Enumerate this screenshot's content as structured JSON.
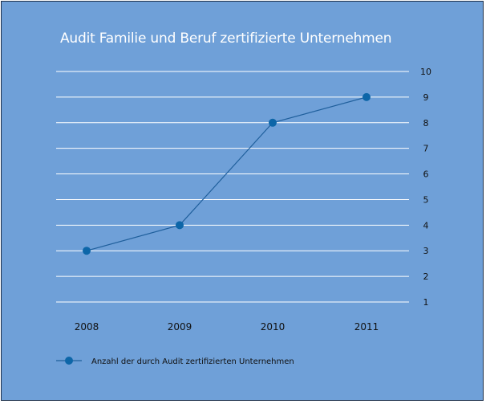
{
  "chart_data": {
    "type": "line",
    "title": "Audit Familie und Beruf zertifizierte Unternehmen",
    "xlabel": "",
    "ylabel": "",
    "categories": [
      "2008",
      "2009",
      "2010",
      "2011"
    ],
    "series": [
      {
        "name": "Anzahl der durch Audit zertifizierten Unternehmen",
        "values": [
          3,
          4,
          8,
          9
        ]
      }
    ],
    "ylim": [
      1,
      10
    ],
    "yticks": [
      1,
      2,
      3,
      4,
      5,
      6,
      7,
      8,
      9,
      10
    ],
    "y_axis_side": "right",
    "grid": true,
    "legend": "bottom-left",
    "colors": {
      "background": "#6fa0d8",
      "gridline": "#ffffff",
      "line": "#1f5f9c",
      "marker": "#0d66a8",
      "text": "#111111",
      "title": "#ffffff",
      "border": "#1c2f4a"
    }
  }
}
